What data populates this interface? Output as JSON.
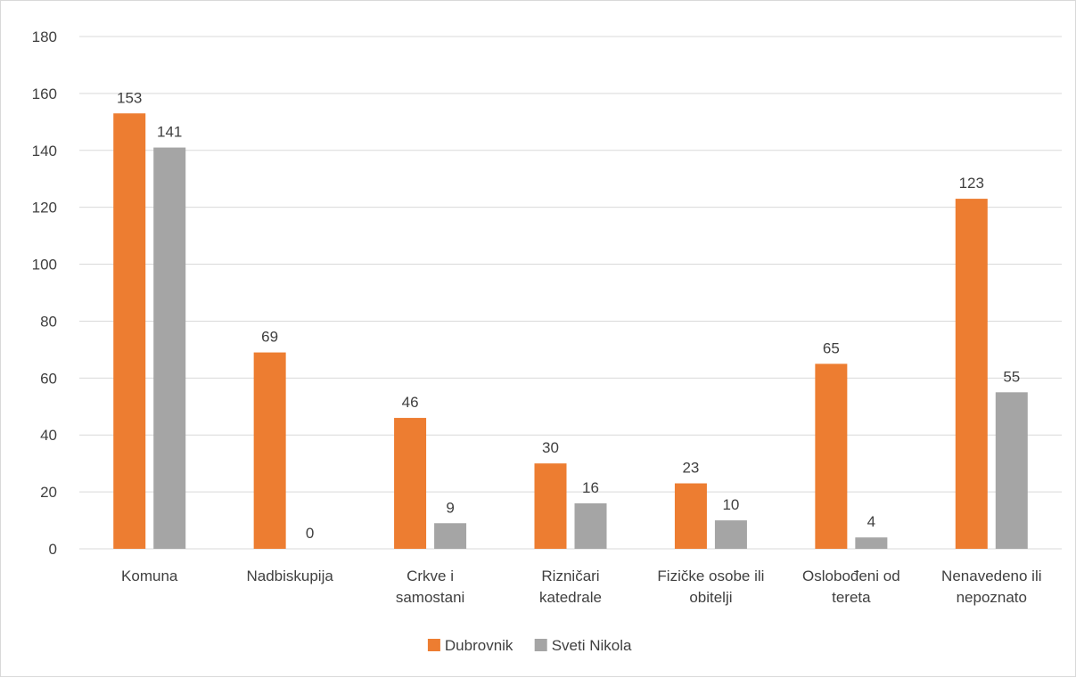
{
  "chart_data": {
    "type": "bar",
    "categories": [
      [
        "Komuna"
      ],
      [
        "Nadbiskupija"
      ],
      [
        "Crkve i",
        "samostani"
      ],
      [
        "Rizničari",
        "katedrale"
      ],
      [
        "Fizičke osobe ili",
        "obitelji"
      ],
      [
        "Oslobođeni od",
        "tereta"
      ],
      [
        "Nenavedeno ili",
        "nepoznato"
      ]
    ],
    "series": [
      {
        "name": "Dubrovnik",
        "color": "#ed7d31",
        "values": [
          153,
          69,
          46,
          30,
          23,
          65,
          123
        ]
      },
      {
        "name": "Sveti Nikola",
        "color": "#a5a5a5",
        "values": [
          141,
          0,
          9,
          16,
          10,
          4,
          55
        ]
      }
    ],
    "ylim": [
      0,
      180
    ],
    "yticks": [
      0,
      20,
      40,
      60,
      80,
      100,
      120,
      140,
      160,
      180
    ],
    "grid": true,
    "legend": "bottom",
    "title": "",
    "xlabel": "",
    "ylabel": ""
  }
}
